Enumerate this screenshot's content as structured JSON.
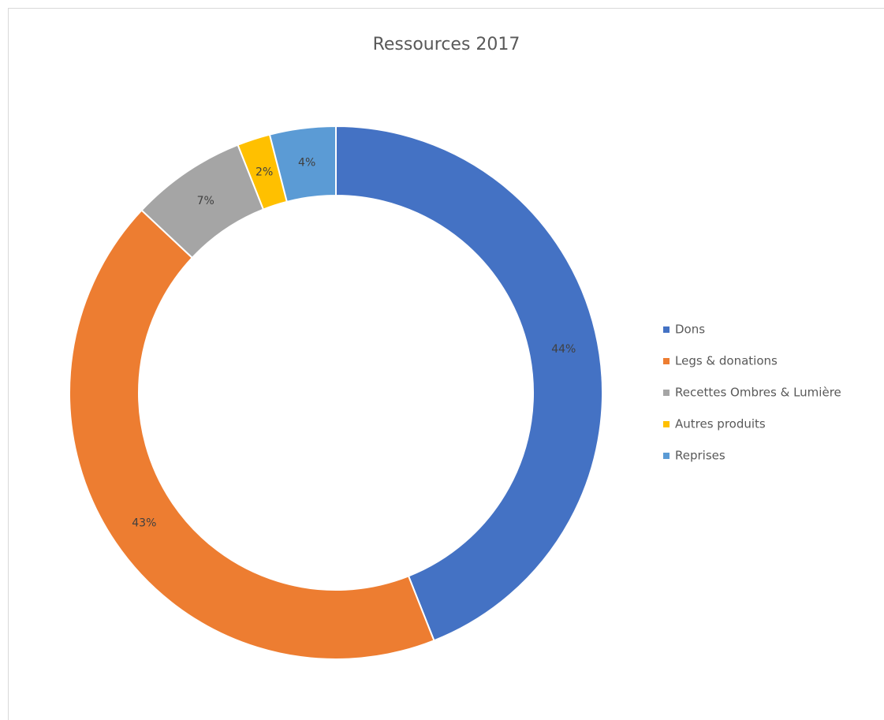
{
  "chart_data": {
    "type": "donut",
    "title": "Ressources 2017",
    "categories": [
      "Dons",
      "Legs & donations",
      "Recettes Ombres & Lumière",
      "Autres produits",
      "Reprises"
    ],
    "values": [
      44,
      43,
      7,
      2,
      4
    ],
    "value_labels": [
      "44%",
      "43%",
      "7%",
      "2%",
      "4%"
    ],
    "colors": [
      "#4472c4",
      "#ed7d31",
      "#a5a5a5",
      "#ffc000",
      "#5b9bd5"
    ],
    "legend": "right"
  }
}
